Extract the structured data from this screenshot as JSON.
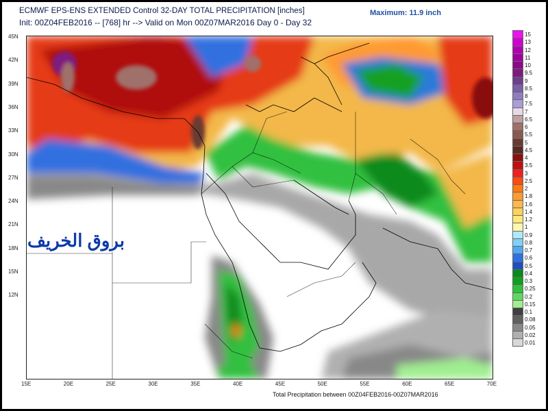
{
  "header": {
    "title_line1": "ECMWF EPS-ENS EXTENDED Control 32-DAY TOTAL PRECIPITATION [inches]",
    "title_line2": "Init: 00Z04FEB2016 -- [768] hr --> Valid on Mon 00Z07MAR2016   Day 0 - Day 32",
    "maximum": "Maximum: 11.9 inch"
  },
  "footer": "Total Precipitation between 00Z04FEB2016-00Z07MAR2016",
  "watermark": "بروق الخريف",
  "lat_labels": [
    "45N",
    "42N",
    "39N",
    "36N",
    "33N",
    "30N",
    "27N",
    "24N",
    "21N",
    "18N",
    "15N",
    "12N"
  ],
  "lon_labels": [
    "15E",
    "20E",
    "25E",
    "30E",
    "35E",
    "40E",
    "45E",
    "50E",
    "55E",
    "60E",
    "65E",
    "70E"
  ],
  "legend": {
    "labels": [
      "15",
      "13",
      "12",
      "11",
      "10",
      "9.5",
      "9",
      "8.5",
      "8",
      "7.5",
      "7",
      "6.5",
      "6",
      "5.5",
      "5",
      "4.5",
      "4",
      "3.5",
      "3",
      "2.5",
      "2",
      "1.8",
      "1.6",
      "1.4",
      "1.2",
      "1",
      "0.9",
      "0.8",
      "0.7",
      "0.6",
      "0.5",
      "0.4",
      "0.3",
      "0.25",
      "0.2",
      "0.15",
      "0.1",
      "0.08",
      "0.05",
      "0.02",
      "0.01"
    ],
    "colors": [
      "#f00ff0",
      "#d000d0",
      "#b000b0",
      "#a000a0",
      "#8a0a8a",
      "#7f1a7f",
      "#6d3f8f",
      "#7b5fa8",
      "#8f7dc0",
      "#a99ed6",
      "#e8d8e8",
      "#c0a0a0",
      "#a0706a",
      "#8a5a50",
      "#6a3a30",
      "#5a2a20",
      "#8a1010",
      "#c01010",
      "#ee2020",
      "#ff4a10",
      "#ff7a10",
      "#ff9a30",
      "#ffb84a",
      "#ffd05a",
      "#ffe87a",
      "#fff6b0",
      "#b0e8ff",
      "#80d0f8",
      "#50a8f0",
      "#3070e0",
      "#1e50c0",
      "#0a8a1a",
      "#10a020",
      "#30c040",
      "#60d860",
      "#a0ee90",
      "#404040",
      "#606060",
      "#888888",
      "#b0b0b0",
      "#d8d8d8"
    ]
  }
}
